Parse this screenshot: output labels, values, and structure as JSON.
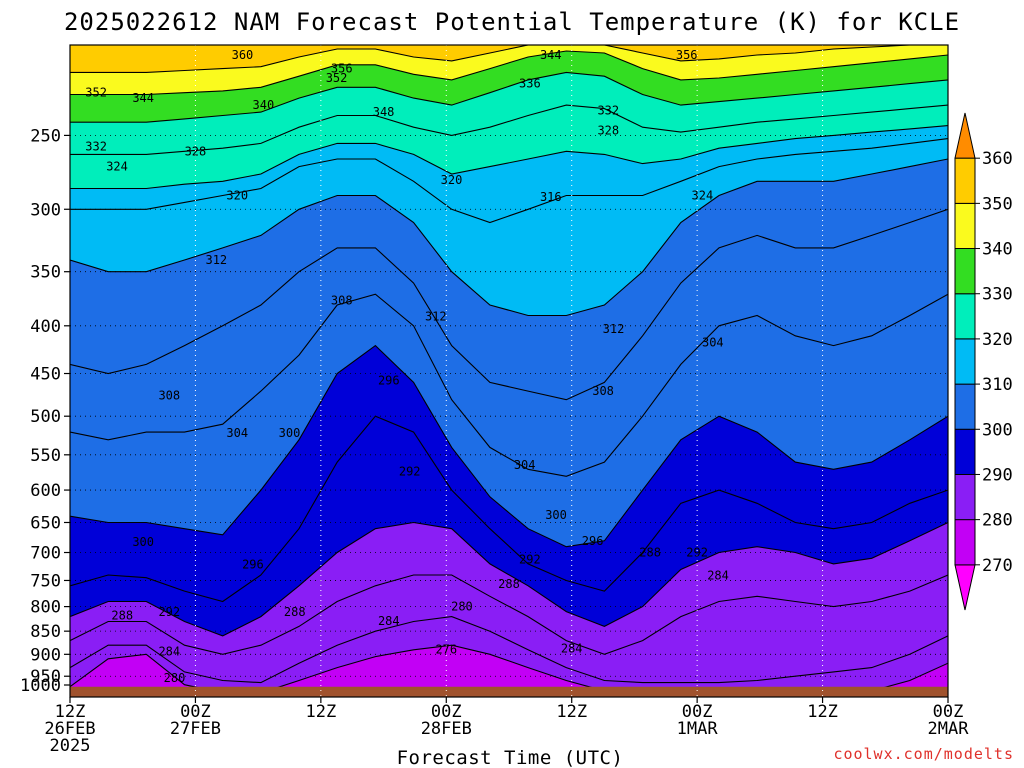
{
  "chart_data": {
    "type": "heatmap",
    "title": "2025022612 NAM Forecast Potential Temperature (K) for KCLE",
    "xlabel": "Forecast Time (UTC)",
    "ylabel": "",
    "y_scale": "log",
    "y_inverted": true,
    "ylim": [
      1000,
      200
    ],
    "y_ticks": [
      250,
      300,
      350,
      400,
      450,
      500,
      550,
      600,
      650,
      700,
      750,
      800,
      850,
      900,
      950,
      1000
    ],
    "x_ticks": [
      {
        "t": 0,
        "line1": "12Z",
        "line2": "26FEB",
        "line3": "2025"
      },
      {
        "t": 12,
        "line1": "00Z",
        "line2": "27FEB",
        "line3": ""
      },
      {
        "t": 24,
        "line1": "12Z",
        "line2": "",
        "line3": ""
      },
      {
        "t": 36,
        "line1": "00Z",
        "line2": "28FEB",
        "line3": ""
      },
      {
        "t": 48,
        "line1": "12Z",
        "line2": "",
        "line3": ""
      },
      {
        "t": 60,
        "line1": "00Z",
        "line2": "1MAR",
        "line3": ""
      },
      {
        "t": 72,
        "line1": "12Z",
        "line2": "",
        "line3": ""
      },
      {
        "t": 84,
        "line1": "00Z",
        "line2": "2MAR",
        "line3": ""
      }
    ],
    "colorbar": {
      "levels": [
        270,
        280,
        290,
        300,
        310,
        320,
        330,
        340,
        350,
        360
      ],
      "colors": [
        "#ff00ff",
        "#c200f5",
        "#8a1ef5",
        "#0000d8",
        "#1e6ee6",
        "#00bbf5",
        "#00eebb",
        "#33dd22",
        "#fafa1e",
        "#ffcc00",
        "#ff8c00"
      ]
    },
    "isentrope_pressure_levels": [
      {
        "theta": 280,
        "p": [
          975,
          910,
          900,
          970,
          990,
          990,
          960,
          930,
          905,
          890,
          880,
          900,
          930,
          960,
          985,
          990,
          990,
          990,
          990,
          990,
          990,
          985,
          960,
          920
        ]
      },
      {
        "theta": 284,
        "p": [
          930,
          880,
          880,
          940,
          960,
          965,
          920,
          880,
          850,
          830,
          820,
          850,
          890,
          930,
          960,
          965,
          965,
          965,
          960,
          950,
          940,
          930,
          900,
          860
        ]
      },
      {
        "theta": 288,
        "p": [
          870,
          830,
          830,
          880,
          900,
          880,
          840,
          790,
          760,
          740,
          740,
          780,
          820,
          870,
          900,
          870,
          820,
          790,
          780,
          790,
          800,
          790,
          770,
          740
        ]
      },
      {
        "theta": 292,
        "p": [
          820,
          790,
          790,
          830,
          860,
          820,
          760,
          700,
          660,
          650,
          660,
          720,
          760,
          810,
          840,
          800,
          730,
          700,
          690,
          700,
          720,
          710,
          680,
          650
        ]
      },
      {
        "theta": 296,
        "p": [
          760,
          740,
          745,
          770,
          790,
          740,
          660,
          560,
          500,
          520,
          600,
          660,
          720,
          750,
          770,
          700,
          620,
          600,
          620,
          650,
          660,
          650,
          620,
          600
        ]
      },
      {
        "theta": 300,
        "p": [
          640,
          650,
          650,
          660,
          670,
          600,
          530,
          450,
          420,
          460,
          540,
          610,
          660,
          690,
          680,
          600,
          530,
          500,
          520,
          560,
          570,
          560,
          530,
          500
        ]
      },
      {
        "theta": 304,
        "p": [
          520,
          530,
          520,
          520,
          510,
          470,
          430,
          380,
          370,
          400,
          480,
          540,
          570,
          580,
          560,
          500,
          440,
          400,
          390,
          410,
          420,
          410,
          390,
          370
        ]
      },
      {
        "theta": 308,
        "p": [
          440,
          450,
          440,
          420,
          400,
          380,
          350,
          330,
          330,
          360,
          420,
          460,
          470,
          480,
          460,
          410,
          360,
          330,
          320,
          330,
          330,
          320,
          310,
          300
        ]
      },
      {
        "theta": 312,
        "p": [
          340,
          350,
          350,
          340,
          330,
          320,
          300,
          290,
          290,
          310,
          350,
          380,
          390,
          390,
          380,
          350,
          310,
          290,
          280,
          280,
          280,
          275,
          270,
          265
        ]
      },
      {
        "theta": 316,
        "p": [
          300,
          300,
          300,
          295,
          290,
          285,
          270,
          265,
          265,
          280,
          300,
          310,
          300,
          290,
          290,
          290,
          280,
          270,
          265,
          262,
          260,
          258,
          255,
          252
        ]
      },
      {
        "theta": 320,
        "p": [
          285,
          285,
          285,
          282,
          280,
          275,
          262,
          255,
          255,
          262,
          275,
          270,
          265,
          260,
          262,
          268,
          265,
          258,
          255,
          252,
          250,
          248,
          246,
          244
        ]
      },
      {
        "theta": 328,
        "p": [
          262,
          262,
          262,
          260,
          258,
          255,
          245,
          238,
          238,
          245,
          250,
          245,
          238,
          232,
          234,
          245,
          248,
          245,
          242,
          240,
          238,
          236,
          234,
          232
        ]
      },
      {
        "theta": 336,
        "p": [
          242,
          242,
          242,
          240,
          238,
          236,
          228,
          222,
          222,
          228,
          232,
          225,
          218,
          214,
          216,
          226,
          232,
          230,
          228,
          226,
          224,
          222,
          220,
          218
        ]
      },
      {
        "theta": 344,
        "p": [
          226,
          226,
          226,
          225,
          224,
          222,
          216,
          210,
          210,
          215,
          218,
          212,
          206,
          203,
          204,
          212,
          218,
          217,
          215,
          213,
          211,
          209,
          207,
          205
        ]
      },
      {
        "theta": 352,
        "p": [
          214,
          214,
          214,
          213,
          212,
          211,
          206,
          202,
          202,
          206,
          208,
          204,
          200,
          200,
          200,
          204,
          208,
          207,
          205,
          204,
          202,
          201,
          200,
          200
        ]
      }
    ],
    "contour_labels": [
      {
        "text": "360",
        "t": 16.5,
        "p": 205
      },
      {
        "text": "356",
        "t": 26,
        "p": 212
      },
      {
        "text": "352",
        "t": 2.5,
        "p": 225
      },
      {
        "text": "352",
        "t": 25.5,
        "p": 217
      },
      {
        "text": "344",
        "t": 7,
        "p": 228
      },
      {
        "text": "340",
        "t": 18.5,
        "p": 232
      },
      {
        "text": "348",
        "t": 30,
        "p": 236
      },
      {
        "text": "332",
        "t": 2.5,
        "p": 257
      },
      {
        "text": "328",
        "t": 12,
        "p": 260
      },
      {
        "text": "324",
        "t": 4.5,
        "p": 270
      },
      {
        "text": "320",
        "t": 16,
        "p": 290
      },
      {
        "text": "312",
        "t": 14,
        "p": 340
      },
      {
        "text": "308",
        "t": 26,
        "p": 376
      },
      {
        "text": "312",
        "t": 35,
        "p": 391
      },
      {
        "text": "308",
        "t": 9.5,
        "p": 475
      },
      {
        "text": "304",
        "t": 16,
        "p": 521
      },
      {
        "text": "300",
        "t": 21,
        "p": 521
      },
      {
        "text": "296",
        "t": 30.5,
        "p": 458
      },
      {
        "text": "292",
        "t": 32.5,
        "p": 573
      },
      {
        "text": "300",
        "t": 7,
        "p": 682
      },
      {
        "text": "296",
        "t": 17.5,
        "p": 721
      },
      {
        "text": "288",
        "t": 5,
        "p": 818
      },
      {
        "text": "292",
        "t": 9.5,
        "p": 811
      },
      {
        "text": "288",
        "t": 21.5,
        "p": 811
      },
      {
        "text": "284",
        "t": 30.5,
        "p": 829
      },
      {
        "text": "280",
        "t": 37.5,
        "p": 800
      },
      {
        "text": "284",
        "t": 9.5,
        "p": 894
      },
      {
        "text": "280",
        "t": 10,
        "p": 954
      },
      {
        "text": "276",
        "t": 36,
        "p": 889
      },
      {
        "text": "288",
        "t": 42,
        "p": 757
      },
      {
        "text": "292",
        "t": 44,
        "p": 712
      },
      {
        "text": "304",
        "t": 43.5,
        "p": 564
      },
      {
        "text": "300",
        "t": 46.5,
        "p": 638
      },
      {
        "text": "296",
        "t": 50,
        "p": 680
      },
      {
        "text": "284",
        "t": 48,
        "p": 887
      },
      {
        "text": "320",
        "t": 36.5,
        "p": 279
      },
      {
        "text": "316",
        "t": 46,
        "p": 291
      },
      {
        "text": "308",
        "t": 51,
        "p": 470
      },
      {
        "text": "312",
        "t": 52,
        "p": 403
      },
      {
        "text": "304",
        "t": 61.5,
        "p": 417
      },
      {
        "text": "288",
        "t": 55.5,
        "p": 700
      },
      {
        "text": "292",
        "t": 60,
        "p": 700
      },
      {
        "text": "284",
        "t": 62,
        "p": 741
      },
      {
        "text": "324",
        "t": 60.5,
        "p": 290
      },
      {
        "text": "328",
        "t": 51.5,
        "p": 247
      },
      {
        "text": "332",
        "t": 51.5,
        "p": 235
      },
      {
        "text": "336",
        "t": 44,
        "p": 220
      },
      {
        "text": "344",
        "t": 46,
        "p": 205
      },
      {
        "text": "356",
        "t": 59,
        "p": 205
      }
    ]
  },
  "credit": "coolwx.com/modelts"
}
